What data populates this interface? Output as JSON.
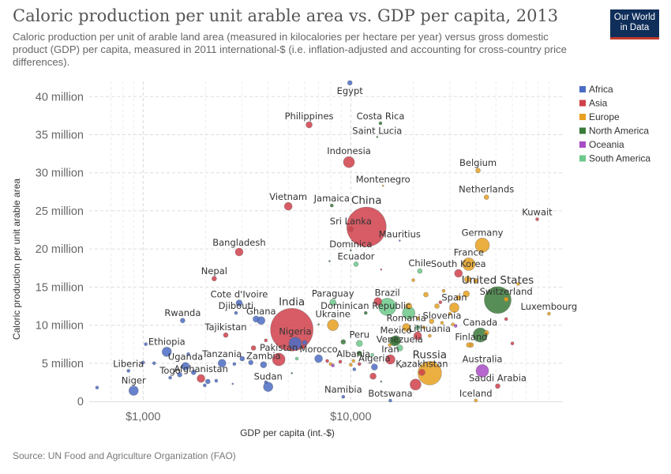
{
  "header": {
    "title": "Caloric production per unit arable area vs. GDP per capita, 2013",
    "subtitle": "Caloric production per unit of arable land area (measured in kilocalories per hectare per year) versus gross domestic product (GDP) per capita, measured in 2011 international-$ (i.e. inflation-adjusted and accounting for cross-country price differences).",
    "logo_line1": "Our World",
    "logo_line2": "in Data"
  },
  "footer": {
    "source": "Source: UN Food and Agriculture Organization (FAO)"
  },
  "chart_data": {
    "type": "scatter",
    "xlabel": "GDP per capita (int.-$)",
    "ylabel": "Caloric production per unit arable area",
    "x_scale": "log",
    "xlim": [
      550,
      105000
    ],
    "ylim": [
      0,
      42000000
    ],
    "x_ticks": [
      {
        "value": 1000,
        "label": "$1,000"
      },
      {
        "value": 10000,
        "label": "$10,000"
      }
    ],
    "y_ticks": [
      {
        "value": 0,
        "label": "0"
      },
      {
        "value": 5000000,
        "label": "5 million"
      },
      {
        "value": 10000000,
        "label": "10 million"
      },
      {
        "value": 15000000,
        "label": "15 million"
      },
      {
        "value": 20000000,
        "label": "20 million"
      },
      {
        "value": 25000000,
        "label": "25 million"
      },
      {
        "value": 30000000,
        "label": "30 million"
      },
      {
        "value": 35000000,
        "label": "35 million"
      },
      {
        "value": 40000000,
        "label": "40 million"
      }
    ],
    "grid": true,
    "legend_position": "right",
    "legend": [
      {
        "name": "Africa",
        "color": "#4c6cc4"
      },
      {
        "name": "Asia",
        "color": "#d0404a"
      },
      {
        "name": "Europe",
        "color": "#e8a020"
      },
      {
        "name": "North America",
        "color": "#3a7a3a"
      },
      {
        "name": "Oceania",
        "color": "#a84cc4"
      },
      {
        "name": "South America",
        "color": "#6cc98a"
      }
    ],
    "points": [
      {
        "label": "Egypt",
        "region": "Africa",
        "x": 9900,
        "y": 41800000,
        "size": 3
      },
      {
        "label": "Philippines",
        "region": "Asia",
        "x": 6300,
        "y": 36300000,
        "size": 4
      },
      {
        "label": "Costa Rica",
        "region": "North America",
        "x": 13900,
        "y": 36500000,
        "size": 2
      },
      {
        "label": "Saint Lucia",
        "region": "North America",
        "x": 13400,
        "y": 34700000,
        "size": 1
      },
      {
        "label": "Indonesia",
        "region": "Asia",
        "x": 9800,
        "y": 31400000,
        "size": 7
      },
      {
        "label": "Belgium",
        "region": "Europe",
        "x": 41000,
        "y": 30300000,
        "size": 3
      },
      {
        "label": "Montenegro",
        "region": "Europe",
        "x": 14300,
        "y": 28300000,
        "size": 1
      },
      {
        "label": "Netherlands",
        "region": "Europe",
        "x": 45000,
        "y": 26800000,
        "size": 3
      },
      {
        "label": "Vietnam",
        "region": "Asia",
        "x": 5000,
        "y": 25600000,
        "size": 5
      },
      {
        "label": "Jamaica",
        "region": "North America",
        "x": 8100,
        "y": 25700000,
        "size": 2
      },
      {
        "label": "Kuwait",
        "region": "Asia",
        "x": 79000,
        "y": 23900000,
        "size": 2
      },
      {
        "label": "China",
        "region": "Asia",
        "x": 11900,
        "y": 22900000,
        "size": 25
      },
      {
        "label": "Sri Lanka",
        "region": "Asia",
        "x": 10000,
        "y": 22600000,
        "size": 3
      },
      {
        "label": "Mauritius",
        "region": "Africa",
        "x": 17200,
        "y": 21100000,
        "size": 1
      },
      {
        "label": "Germany",
        "region": "Europe",
        "x": 43000,
        "y": 20500000,
        "size": 9
      },
      {
        "label": "Bangladesh",
        "region": "Asia",
        "x": 2900,
        "y": 19600000,
        "size": 5
      },
      {
        "label": "Dominica",
        "region": "North America",
        "x": 10000,
        "y": 19800000,
        "size": 1
      },
      {
        "label": "Ecuador",
        "region": "South America",
        "x": 10600,
        "y": 18000000,
        "size": 3
      },
      {
        "label": "France",
        "region": "Europe",
        "x": 37000,
        "y": 18000000,
        "size": 8
      },
      {
        "label": "Chile",
        "region": "South America",
        "x": 21500,
        "y": 17100000,
        "size": 3
      },
      {
        "label": "South Korea",
        "region": "Asia",
        "x": 33000,
        "y": 16800000,
        "size": 5
      },
      {
        "label": "Nepal",
        "region": "Asia",
        "x": 2200,
        "y": 16100000,
        "size": 3
      },
      {
        "label": "United States",
        "region": "North America",
        "x": 51000,
        "y": 13300000,
        "size": 17
      },
      {
        "label": "Paraguay",
        "region": "South America",
        "x": 8200,
        "y": 13000000,
        "size": 4
      },
      {
        "label": "Brazil",
        "region": "South America",
        "x": 15000,
        "y": 12400000,
        "size": 11
      },
      {
        "label": "Switzerland",
        "region": "Europe",
        "x": 56000,
        "y": 13400000,
        "size": 3
      },
      {
        "label": "Cote d'Ivoire",
        "region": "Africa",
        "x": 2900,
        "y": 12900000,
        "size": 4
      },
      {
        "label": "Spain",
        "region": "Europe",
        "x": 31500,
        "y": 12300000,
        "size": 6
      },
      {
        "label": "Djibouti",
        "region": "Africa",
        "x": 2800,
        "y": 11600000,
        "size": 2
      },
      {
        "label": "Dominican Republic",
        "region": "North America",
        "x": 11800,
        "y": 11600000,
        "size": 2
      },
      {
        "label": "Luxembourg",
        "region": "Europe",
        "x": 90000,
        "y": 11500000,
        "size": 2
      },
      {
        "label": "Ukraine",
        "region": "Europe",
        "x": 8200,
        "y": 10000000,
        "size": 7
      },
      {
        "label": "Ghana",
        "region": "Africa",
        "x": 3700,
        "y": 10600000,
        "size": 5
      },
      {
        "label": "Rwanda",
        "region": "Africa",
        "x": 1550,
        "y": 10600000,
        "size": 3
      },
      {
        "label": "India",
        "region": "Asia",
        "x": 5200,
        "y": 9400000,
        "size": 27
      },
      {
        "label": "Slovenia",
        "region": "Europe",
        "x": 27500,
        "y": 10300000,
        "size": 2
      },
      {
        "label": "Romania",
        "region": "Europe",
        "x": 18500,
        "y": 9700000,
        "size": 5
      },
      {
        "label": "Tajikistan",
        "region": "Asia",
        "x": 2500,
        "y": 8700000,
        "size": 3
      },
      {
        "label": "Canada",
        "region": "North America",
        "x": 42000,
        "y": 8700000,
        "size": 9
      },
      {
        "label": "Lithuania",
        "region": "Europe",
        "x": 24000,
        "y": 8600000,
        "size": 2
      },
      {
        "label": "Nigeria",
        "region": "Africa",
        "x": 5400,
        "y": 7600000,
        "size": 8
      },
      {
        "label": "Mexico",
        "region": "North America",
        "x": 16500,
        "y": 8000000,
        "size": 6
      },
      {
        "label": "Peru",
        "region": "South America",
        "x": 11000,
        "y": 7600000,
        "size": 4
      },
      {
        "label": "Venezuela",
        "region": "South America",
        "x": 17200,
        "y": 7000000,
        "size": 4
      },
      {
        "label": "Finland",
        "region": "Europe",
        "x": 38000,
        "y": 7400000,
        "size": 3
      },
      {
        "label": "Ethiopia",
        "region": "Africa",
        "x": 1300,
        "y": 6500000,
        "size": 6
      },
      {
        "label": "Iran",
        "region": "Asia",
        "x": 15500,
        "y": 5500000,
        "size": 6
      },
      {
        "label": "Pakistan",
        "region": "Asia",
        "x": 4500,
        "y": 5500000,
        "size": 8
      },
      {
        "label": "Tanzania",
        "region": "Africa",
        "x": 2400,
        "y": 5000000,
        "size": 5
      },
      {
        "label": "Zambia",
        "region": "Africa",
        "x": 3800,
        "y": 4800000,
        "size": 4
      },
      {
        "label": "Uganda",
        "region": "Africa",
        "x": 1600,
        "y": 4600000,
        "size": 5
      },
      {
        "label": "Morocco",
        "region": "Africa",
        "x": 7000,
        "y": 5600000,
        "size": 5
      },
      {
        "label": "Albania",
        "region": "Europe",
        "x": 10300,
        "y": 5300000,
        "size": 2
      },
      {
        "label": "Algeria",
        "region": "Africa",
        "x": 13000,
        "y": 4500000,
        "size": 4
      },
      {
        "label": "Australia",
        "region": "Oceania",
        "x": 43000,
        "y": 4000000,
        "size": 8
      },
      {
        "label": "Liberia",
        "region": "Africa",
        "x": 850,
        "y": 4000000,
        "size": 2
      },
      {
        "label": "Afghanistan",
        "region": "Asia",
        "x": 1900,
        "y": 3000000,
        "size": 5
      },
      {
        "label": "Togo",
        "region": "Africa",
        "x": 1350,
        "y": 3100000,
        "size": 2
      },
      {
        "label": "Kazakhstan",
        "region": "Asia",
        "x": 22000,
        "y": 3800000,
        "size": 4
      },
      {
        "label": "Russia",
        "region": "Europe",
        "x": 24000,
        "y": 3700000,
        "size": 15
      },
      {
        "label": "Sudan",
        "region": "Africa",
        "x": 4000,
        "y": 1900000,
        "size": 6
      },
      {
        "label": "Saudi Arabia",
        "region": "Asia",
        "x": 51000,
        "y": 2000000,
        "size": 3
      },
      {
        "label": "Niger",
        "region": "Africa",
        "x": 900,
        "y": 1400000,
        "size": 6
      },
      {
        "label": "Namibia",
        "region": "Africa",
        "x": 9200,
        "y": 600000,
        "size": 2
      },
      {
        "label": "Botswana",
        "region": "Africa",
        "x": 15500,
        "y": 100000,
        "size": 2
      },
      {
        "label": "Iceland",
        "region": "Europe",
        "x": 40000,
        "y": 100000,
        "size": 2
      },
      {
        "label": "",
        "region": "Africa",
        "x": 600,
        "y": 1800000,
        "size": 2
      },
      {
        "label": "",
        "region": "Africa",
        "x": 1030,
        "y": 7500000,
        "size": 2
      },
      {
        "label": "",
        "region": "Africa",
        "x": 1000,
        "y": 5100000,
        "size": 2
      },
      {
        "label": "",
        "region": "Africa",
        "x": 1130,
        "y": 5000000,
        "size": 2
      },
      {
        "label": "",
        "region": "Africa",
        "x": 1500,
        "y": 3500000,
        "size": 3
      },
      {
        "label": "",
        "region": "Africa",
        "x": 1650,
        "y": 6200000,
        "size": 2
      },
      {
        "label": "",
        "region": "Africa",
        "x": 1750,
        "y": 3800000,
        "size": 3
      },
      {
        "label": "",
        "region": "Africa",
        "x": 2050,
        "y": 2600000,
        "size": 3
      },
      {
        "label": "",
        "region": "Africa",
        "x": 1980,
        "y": 2100000,
        "size": 2
      },
      {
        "label": "",
        "region": "Africa",
        "x": 2250,
        "y": 2700000,
        "size": 2
      },
      {
        "label": "",
        "region": "Africa",
        "x": 2750,
        "y": 4900000,
        "size": 2
      },
      {
        "label": "",
        "region": "Africa",
        "x": 3000,
        "y": 5600000,
        "size": 3
      },
      {
        "label": "",
        "region": "Africa",
        "x": 3300,
        "y": 5100000,
        "size": 3
      },
      {
        "label": "",
        "region": "Africa",
        "x": 3900,
        "y": 2500000,
        "size": 2
      },
      {
        "label": "",
        "region": "Africa",
        "x": 3500,
        "y": 10800000,
        "size": 4
      },
      {
        "label": "",
        "region": "Africa",
        "x": 6000,
        "y": 7700000,
        "size": 3
      },
      {
        "label": "",
        "region": "Africa",
        "x": 10400,
        "y": 4200000,
        "size": 2
      },
      {
        "label": "",
        "region": "Africa",
        "x": 2700,
        "y": 2300000,
        "size": 1
      },
      {
        "label": "",
        "region": "Asia",
        "x": 3400,
        "y": 7000000,
        "size": 3
      },
      {
        "label": "",
        "region": "Asia",
        "x": 13500,
        "y": 13100000,
        "size": 5
      },
      {
        "label": "",
        "region": "Asia",
        "x": 14000,
        "y": 17300000,
        "size": 1
      },
      {
        "label": "",
        "region": "Asia",
        "x": 8900,
        "y": 5200000,
        "size": 2
      },
      {
        "label": "",
        "region": "Asia",
        "x": 12800,
        "y": 3300000,
        "size": 4
      },
      {
        "label": "",
        "region": "Asia",
        "x": 20500,
        "y": 2200000,
        "size": 7
      },
      {
        "label": "",
        "region": "Asia",
        "x": 7700,
        "y": 5300000,
        "size": 2
      },
      {
        "label": "",
        "region": "Asia",
        "x": 3900,
        "y": 8000000,
        "size": 2
      },
      {
        "label": "",
        "region": "Asia",
        "x": 5900,
        "y": 7100000,
        "size": 2
      },
      {
        "label": "",
        "region": "Asia",
        "x": 11000,
        "y": 4900000,
        "size": 2
      },
      {
        "label": "",
        "region": "Asia",
        "x": 27000,
        "y": 13000000,
        "size": 2
      },
      {
        "label": "",
        "region": "Asia",
        "x": 56000,
        "y": 10800000,
        "size": 2
      },
      {
        "label": "",
        "region": "Asia",
        "x": 60000,
        "y": 7600000,
        "size": 2
      },
      {
        "label": "",
        "region": "Asia",
        "x": 21000,
        "y": 8600000,
        "size": 5
      },
      {
        "label": "",
        "region": "Europe",
        "x": 26000,
        "y": 12500000,
        "size": 3
      },
      {
        "label": "",
        "region": "Europe",
        "x": 23000,
        "y": 14000000,
        "size": 3
      },
      {
        "label": "",
        "region": "Europe",
        "x": 28000,
        "y": 14500000,
        "size": 2
      },
      {
        "label": "",
        "region": "Europe",
        "x": 30000,
        "y": 11500000,
        "size": 2
      },
      {
        "label": "",
        "region": "Europe",
        "x": 36000,
        "y": 14100000,
        "size": 4
      },
      {
        "label": "",
        "region": "Europe",
        "x": 33000,
        "y": 13600000,
        "size": 3
      },
      {
        "label": "",
        "region": "Europe",
        "x": 40000,
        "y": 15800000,
        "size": 3
      },
      {
        "label": "",
        "region": "Europe",
        "x": 36500,
        "y": 16000000,
        "size": 4
      },
      {
        "label": "",
        "region": "Europe",
        "x": 21000,
        "y": 10900000,
        "size": 2
      },
      {
        "label": "",
        "region": "Europe",
        "x": 19000,
        "y": 12500000,
        "size": 4
      },
      {
        "label": "",
        "region": "Europe",
        "x": 24500,
        "y": 10500000,
        "size": 3
      },
      {
        "label": "",
        "region": "Europe",
        "x": 45000,
        "y": 9000000,
        "size": 3
      },
      {
        "label": "",
        "region": "Europe",
        "x": 37000,
        "y": 7400000,
        "size": 3
      },
      {
        "label": "",
        "region": "Europe",
        "x": 22500,
        "y": 9700000,
        "size": 2
      },
      {
        "label": "",
        "region": "Europe",
        "x": 31000,
        "y": 10100000,
        "size": 2
      },
      {
        "label": "",
        "region": "Europe",
        "x": 10000,
        "y": 4800000,
        "size": 2
      },
      {
        "label": "",
        "region": "Europe",
        "x": 25000,
        "y": 5000000,
        "size": 2
      },
      {
        "label": "",
        "region": "Europe",
        "x": 8000,
        "y": 4900000,
        "size": 2
      },
      {
        "label": "",
        "region": "Europe",
        "x": 20000,
        "y": 15900000,
        "size": 2
      },
      {
        "label": "",
        "region": "Europe",
        "x": 64000,
        "y": 15400000,
        "size": 2
      },
      {
        "label": "",
        "region": "Europe",
        "x": 15400,
        "y": 7400000,
        "size": 2
      },
      {
        "label": "",
        "region": "North America",
        "x": 9200,
        "y": 7800000,
        "size": 3
      },
      {
        "label": "",
        "region": "North America",
        "x": 11000,
        "y": 6300000,
        "size": 3
      },
      {
        "label": "",
        "region": "North America",
        "x": 16200,
        "y": 7900000,
        "size": 6
      },
      {
        "label": "",
        "region": "North America",
        "x": 17500,
        "y": 4500000,
        "size": 1
      },
      {
        "label": "",
        "region": "North America",
        "x": 14000,
        "y": 2600000,
        "size": 1
      },
      {
        "label": "",
        "region": "North America",
        "x": 7000,
        "y": 10100000,
        "size": 1
      },
      {
        "label": "",
        "region": "North America",
        "x": 5200,
        "y": 3700000,
        "size": 1
      },
      {
        "label": "",
        "region": "North America",
        "x": 7900,
        "y": 18400000,
        "size": 1
      },
      {
        "label": "",
        "region": "Oceania",
        "x": 8200,
        "y": 4700000,
        "size": 2
      },
      {
        "label": "",
        "region": "Oceania",
        "x": 32000,
        "y": 9900000,
        "size": 2
      },
      {
        "label": "",
        "region": "South America",
        "x": 19000,
        "y": 11600000,
        "size": 8
      },
      {
        "label": "",
        "region": "South America",
        "x": 12700,
        "y": 6100000,
        "size": 2
      },
      {
        "label": "",
        "region": "South America",
        "x": 5500,
        "y": 5600000,
        "size": 2
      },
      {
        "label": "",
        "region": "South America",
        "x": 21000,
        "y": 9700000,
        "size": 3
      }
    ]
  }
}
